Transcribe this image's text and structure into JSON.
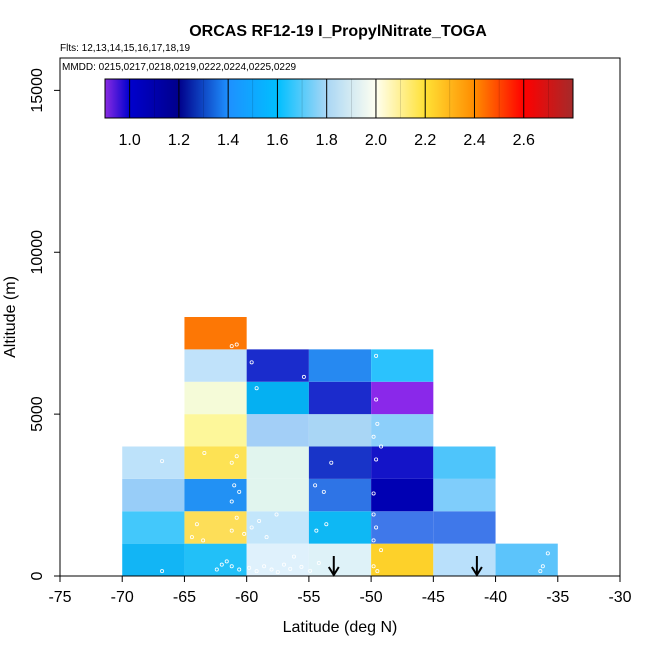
{
  "chart_data": {
    "type": "heatmap",
    "title": "ORCAS RF12-19 I_PropylNitrate_TOGA",
    "flights_note": "Flts: 12,13,14,15,16,17,18,19",
    "mmdd_note": "MMDD: 0215,0217,0218,0219,0222,0224,0225,0229",
    "xlabel": "Latitude (deg N)",
    "ylabel": "Altitude (m)",
    "xlim": [
      -75,
      -30
    ],
    "ylim": [
      0,
      16000
    ],
    "x_ticks": [
      -75,
      -70,
      -65,
      -60,
      -55,
      -50,
      -45,
      -40,
      -35,
      -30
    ],
    "y_ticks": [
      0,
      5000,
      10000,
      15000
    ],
    "colorbar": {
      "range": [
        0.9,
        2.8
      ],
      "tick_values": [
        1.0,
        1.2,
        1.4,
        1.6,
        1.8,
        2.0,
        2.2,
        2.4,
        2.6
      ],
      "tick_labels": [
        "1.0",
        "1.2",
        "1.4",
        "1.6",
        "1.8",
        "2.0",
        "2.2",
        "2.4",
        "2.6"
      ],
      "stops": [
        [
          0.9,
          "#8a2be2"
        ],
        [
          1.0,
          "#0000cd"
        ],
        [
          1.2,
          "#00008b"
        ],
        [
          1.4,
          "#1e90ff"
        ],
        [
          1.6,
          "#00bfff"
        ],
        [
          1.8,
          "#a9d6f5"
        ],
        [
          2.0,
          "#fffff0"
        ],
        [
          2.2,
          "#ffe135"
        ],
        [
          2.4,
          "#ff8c00"
        ],
        [
          2.6,
          "#ff0000"
        ],
        [
          2.8,
          "#a52a2a"
        ]
      ]
    },
    "cells": [
      {
        "lat": [
          -70,
          -65
        ],
        "alt": [
          0,
          1000
        ],
        "color": "#12b5f5"
      },
      {
        "lat": [
          -65,
          -60
        ],
        "alt": [
          0,
          1000
        ],
        "color": "#22c0f8"
      },
      {
        "lat": [
          -60,
          -55
        ],
        "alt": [
          0,
          1000
        ],
        "color": "#dff1fc"
      },
      {
        "lat": [
          -55,
          -50
        ],
        "alt": [
          0,
          1000
        ],
        "color": "#def2f8"
      },
      {
        "lat": [
          -50,
          -45
        ],
        "alt": [
          0,
          1000
        ],
        "color": "#fdd12a"
      },
      {
        "lat": [
          -45,
          -40
        ],
        "alt": [
          0,
          1000
        ],
        "color": "#b9e0fb"
      },
      {
        "lat": [
          -40,
          -35
        ],
        "alt": [
          0,
          1000
        ],
        "color": "#5cc4fb"
      },
      {
        "lat": [
          -70,
          -65
        ],
        "alt": [
          1000,
          2000
        ],
        "color": "#43c8fb"
      },
      {
        "lat": [
          -65,
          -60
        ],
        "alt": [
          1000,
          2000
        ],
        "color": "#fdde58"
      },
      {
        "lat": [
          -60,
          -55
        ],
        "alt": [
          1000,
          2000
        ],
        "color": "#c3e6fb"
      },
      {
        "lat": [
          -55,
          -50
        ],
        "alt": [
          1000,
          2000
        ],
        "color": "#0eb8f4"
      },
      {
        "lat": [
          -50,
          -45
        ],
        "alt": [
          1000,
          2000
        ],
        "color": "#3f78ea"
      },
      {
        "lat": [
          -45,
          -40
        ],
        "alt": [
          1000,
          2000
        ],
        "color": "#3f78ea"
      },
      {
        "lat": [
          -70,
          -65
        ],
        "alt": [
          2000,
          3000
        ],
        "color": "#98cdf8"
      },
      {
        "lat": [
          -65,
          -60
        ],
        "alt": [
          2000,
          3000
        ],
        "color": "#2291f4"
      },
      {
        "lat": [
          -60,
          -55
        ],
        "alt": [
          2000,
          3000
        ],
        "color": "#e1f5ee"
      },
      {
        "lat": [
          -55,
          -50
        ],
        "alt": [
          2000,
          3000
        ],
        "color": "#2e74e6"
      },
      {
        "lat": [
          -50,
          -45
        ],
        "alt": [
          2000,
          3000
        ],
        "color": "#0000b3"
      },
      {
        "lat": [
          -45,
          -40
        ],
        "alt": [
          2000,
          3000
        ],
        "color": "#7fcdfb"
      },
      {
        "lat": [
          -70,
          -65
        ],
        "alt": [
          3000,
          4000
        ],
        "color": "#bde2fa"
      },
      {
        "lat": [
          -65,
          -60
        ],
        "alt": [
          3000,
          4000
        ],
        "color": "#fde254"
      },
      {
        "lat": [
          -60,
          -55
        ],
        "alt": [
          3000,
          4000
        ],
        "color": "#e1f5ee"
      },
      {
        "lat": [
          -55,
          -50
        ],
        "alt": [
          3000,
          4000
        ],
        "color": "#1834c8"
      },
      {
        "lat": [
          -50,
          -45
        ],
        "alt": [
          3000,
          4000
        ],
        "color": "#1414c8"
      },
      {
        "lat": [
          -45,
          -40
        ],
        "alt": [
          3000,
          4000
        ],
        "color": "#4ec5fb"
      },
      {
        "lat": [
          -65,
          -60
        ],
        "alt": [
          4000,
          5000
        ],
        "color": "#fdf79a"
      },
      {
        "lat": [
          -60,
          -55
        ],
        "alt": [
          4000,
          5000
        ],
        "color": "#a3cff7"
      },
      {
        "lat": [
          -55,
          -50
        ],
        "alt": [
          4000,
          5000
        ],
        "color": "#a9d6f5"
      },
      {
        "lat": [
          -50,
          -45
        ],
        "alt": [
          4000,
          5000
        ],
        "color": "#8ccffa"
      },
      {
        "lat": [
          -65,
          -60
        ],
        "alt": [
          5000,
          6000
        ],
        "color": "#f5fbd8"
      },
      {
        "lat": [
          -60,
          -55
        ],
        "alt": [
          5000,
          6000
        ],
        "color": "#05b0f2"
      },
      {
        "lat": [
          -55,
          -50
        ],
        "alt": [
          5000,
          6000
        ],
        "color": "#1b2bcc"
      },
      {
        "lat": [
          -50,
          -45
        ],
        "alt": [
          5000,
          6000
        ],
        "color": "#8a28ea"
      },
      {
        "lat": [
          -65,
          -60
        ],
        "alt": [
          6000,
          7000
        ],
        "color": "#c0e2fa"
      },
      {
        "lat": [
          -60,
          -55
        ],
        "alt": [
          6000,
          7000
        ],
        "color": "#1a2ccc"
      },
      {
        "lat": [
          -55,
          -50
        ],
        "alt": [
          6000,
          7000
        ],
        "color": "#2689f1"
      },
      {
        "lat": [
          -50,
          -45
        ],
        "alt": [
          6000,
          7000
        ],
        "color": "#2bc2fd"
      },
      {
        "lat": [
          -65,
          -60
        ],
        "alt": [
          7000,
          8000
        ],
        "color": "#fd7705"
      }
    ],
    "sample_points": [
      [
        -66.8,
        150
      ],
      [
        -62.4,
        200
      ],
      [
        -62.0,
        350
      ],
      [
        -61.2,
        300
      ],
      [
        -61.6,
        450
      ],
      [
        -60.6,
        200
      ],
      [
        -59.8,
        250
      ],
      [
        -59.2,
        150
      ],
      [
        -58.6,
        300
      ],
      [
        -58.0,
        200
      ],
      [
        -57.5,
        120
      ],
      [
        -57.0,
        350
      ],
      [
        -56.5,
        220
      ],
      [
        -56.2,
        600
      ],
      [
        -55.6,
        280
      ],
      [
        -54.9,
        160
      ],
      [
        -54.2,
        400
      ],
      [
        -49.8,
        300
      ],
      [
        -49.5,
        150
      ],
      [
        -49.2,
        800
      ],
      [
        -36.4,
        150
      ],
      [
        -36.2,
        300
      ],
      [
        -35.8,
        700
      ],
      [
        -64.4,
        1200
      ],
      [
        -64.0,
        1600
      ],
      [
        -63.5,
        1100
      ],
      [
        -61.2,
        1400
      ],
      [
        -60.8,
        1800
      ],
      [
        -60.2,
        1300
      ],
      [
        -59.6,
        1500
      ],
      [
        -59.0,
        1700
      ],
      [
        -58.4,
        1200
      ],
      [
        -57.6,
        1900
      ],
      [
        -54.4,
        1400
      ],
      [
        -53.6,
        1600
      ],
      [
        -49.8,
        1100
      ],
      [
        -49.6,
        1500
      ],
      [
        -49.8,
        1900
      ],
      [
        -66.8,
        3550
      ],
      [
        -63.4,
        3800
      ],
      [
        -61.2,
        3500
      ],
      [
        -60.8,
        3700
      ],
      [
        -61.2,
        2300
      ],
      [
        -61.0,
        2800
      ],
      [
        -60.6,
        2600
      ],
      [
        -54.5,
        2800
      ],
      [
        -53.8,
        2600
      ],
      [
        -53.2,
        3500
      ],
      [
        -49.8,
        2550
      ],
      [
        -49.6,
        3600
      ],
      [
        -49.2,
        4000
      ],
      [
        -49.5,
        4700
      ],
      [
        -49.8,
        4300
      ],
      [
        -59.2,
        5800
      ],
      [
        -55.4,
        6150
      ],
      [
        -49.6,
        5450
      ],
      [
        -59.6,
        6600
      ],
      [
        -49.6,
        6800
      ],
      [
        -60.8,
        7150
      ],
      [
        -61.2,
        7100
      ]
    ],
    "arrows": [
      -53.0,
      -41.5
    ]
  }
}
